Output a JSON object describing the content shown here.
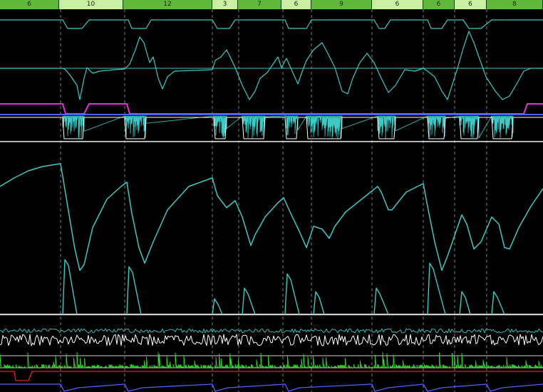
{
  "segment_bar": {
    "segments": [
      {
        "label": "6",
        "color": "#5fb83a"
      },
      {
        "label": "10",
        "color": "#c8f0a0"
      },
      {
        "label": "12",
        "color": "#5fb83a"
      },
      {
        "label": "3",
        "color": "#c8f0a0"
      },
      {
        "label": "7",
        "color": "#5fb83a"
      },
      {
        "label": "6",
        "color": "#c8f0a0"
      },
      {
        "label": "9",
        "color": "#5fb83a"
      },
      {
        "label": "6",
        "color": "#c8f0a0"
      },
      {
        "label": "6",
        "color": "#5fb83a"
      },
      {
        "label": "6",
        "color": "#c8f0a0"
      },
      {
        "label": "8",
        "color": "#5fb83a"
      }
    ]
  },
  "colors": {
    "background": "#000000",
    "trace_teal": "#3fc9c4",
    "trace_white": "#ffffff",
    "trace_magenta": "#e030e0",
    "trace_blue": "#5060ff",
    "trace_green": "#33dd33",
    "trace_red": "#e02020",
    "divider": "#cfcfcf"
  }
}
